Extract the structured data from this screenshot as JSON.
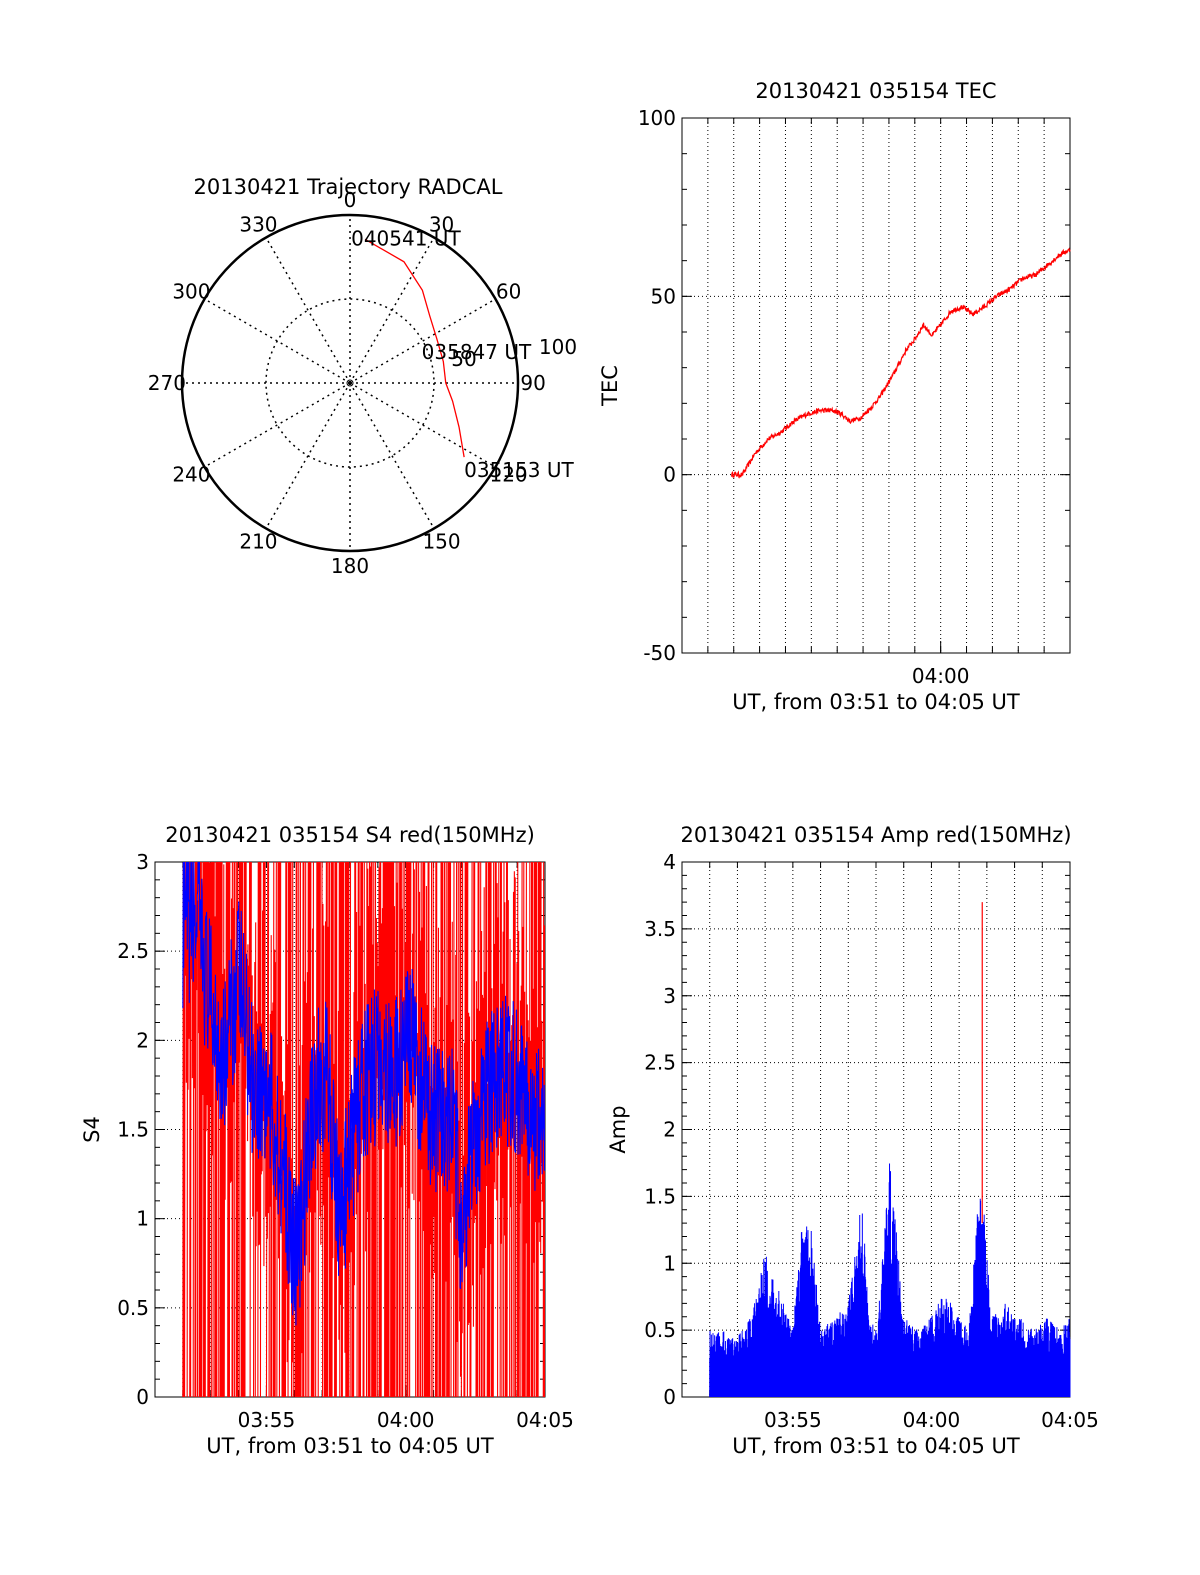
{
  "colors": {
    "background": "#ffffff",
    "axis": "#000000",
    "trajectory": "#ff0000",
    "tec": "#ff0000",
    "s4_primary": "#0000ff",
    "s4_secondary": "#ff0000",
    "amp_primary": "#0000ff",
    "amp_spike": "#ff0000"
  },
  "chart_data": [
    {
      "id": "trajectory",
      "type": "polar",
      "title": "20130421 Trajectory RADCAL",
      "azimuth_labels": [
        "0",
        "30",
        "60",
        "90",
        "120",
        "150",
        "180",
        "210",
        "240",
        "270",
        "300",
        "330"
      ],
      "radius_labels": [
        "50",
        "100"
      ],
      "radius_max": 100,
      "rings": [
        50,
        100
      ],
      "grid": "dotted",
      "series": [
        {
          "points": [
            {
              "az": 123,
              "r": 81
            },
            {
              "az": 112,
              "r": 70
            },
            {
              "az": 100,
              "r": 62
            },
            {
              "az": 90,
              "r": 57
            },
            {
              "az": 77,
              "r": 57
            },
            {
              "az": 63,
              "r": 58
            },
            {
              "az": 50,
              "r": 62
            },
            {
              "az": 38,
              "r": 70
            },
            {
              "az": 24,
              "r": 79
            },
            {
              "az": 6,
              "r": 86
            }
          ]
        }
      ],
      "annotations": [
        {
          "text": "040541 UT",
          "az": 6,
          "r": 86
        },
        {
          "text": "035847 UT",
          "az": 78,
          "r": 57
        },
        {
          "text": "035153 UT",
          "az": 123,
          "r": 81
        }
      ]
    },
    {
      "id": "tec",
      "type": "line",
      "title": "20130421 035154 TEC",
      "xlabel": "UT, from 03:51 to 04:05 UT",
      "ylabel": "TEC",
      "xlim": [
        "03:50",
        "04:05"
      ],
      "ylim": [
        -50,
        100
      ],
      "yticks": [
        -50,
        0,
        50,
        100
      ],
      "xticks": [
        "04:00"
      ],
      "grid": true,
      "series": [
        {
          "x": [
            "03:51:55",
            "03:52:20",
            "03:52:50",
            "03:53:20",
            "03:53:50",
            "03:54:20",
            "03:54:50",
            "03:55:20",
            "03:55:50",
            "03:56:10",
            "03:56:30",
            "03:56:55",
            "03:57:20",
            "03:57:40",
            "03:58:10",
            "03:58:40",
            "03:59:00",
            "03:59:20",
            "03:59:40",
            "04:00:00",
            "04:00:25",
            "04:00:50",
            "04:01:15",
            "04:01:40",
            "04:02:10",
            "04:02:40",
            "04:03:10",
            "04:03:40",
            "04:04:10",
            "04:04:40",
            "04:05:00"
          ],
          "y": [
            0,
            0,
            6,
            10,
            12,
            15,
            17,
            18,
            18,
            17,
            15,
            16,
            19,
            22,
            28,
            35,
            38,
            42,
            39,
            42,
            46,
            47,
            45,
            47,
            50,
            52,
            55,
            56,
            59,
            62,
            63
          ]
        }
      ]
    },
    {
      "id": "s4",
      "type": "line",
      "title": "20130421 035154 S4 red(150MHz)",
      "xlabel": "UT, from 03:51 to 04:05 UT",
      "ylabel": "S4",
      "xlim": [
        "03:51",
        "04:05"
      ],
      "ylim": [
        0,
        3
      ],
      "yticks": [
        0,
        0.5,
        1,
        1.5,
        2,
        2.5,
        3
      ],
      "xticks": [
        "03:55",
        "04:00",
        "04:05"
      ],
      "grid": true,
      "series": [
        {
          "x": [
            "03:52:00",
            "03:52:30",
            "03:53:00",
            "03:53:30",
            "03:54:00",
            "03:54:30",
            "03:55:00",
            "03:55:30",
            "03:55:50",
            "03:56:10",
            "03:56:40",
            "03:57:10",
            "03:57:40",
            "03:58:10",
            "03:58:40",
            "03:59:10",
            "03:59:40",
            "04:00:10",
            "04:00:40",
            "04:01:10",
            "04:01:40",
            "04:02:00",
            "04:02:20",
            "04:02:50",
            "04:03:20",
            "04:03:50",
            "04:04:20",
            "04:04:50"
          ],
          "y": [
            2.6,
            2.7,
            2.2,
            1.9,
            2.4,
            1.8,
            1.7,
            1.4,
            0.95,
            0.8,
            1.7,
            1.8,
            1.0,
            1.5,
            1.8,
            1.9,
            1.8,
            2.0,
            1.7,
            1.5,
            1.6,
            0.95,
            1.3,
            1.7,
            1.8,
            1.8,
            1.7,
            1.5
          ]
        }
      ]
    },
    {
      "id": "amp",
      "type": "bar",
      "title": "20130421 035154 Amp red(150MHz)",
      "xlabel": "UT, from 03:51 to 04:05 UT",
      "ylabel": "Amp",
      "xlim": [
        "03:51",
        "04:05"
      ],
      "ylim": [
        0,
        4
      ],
      "yticks": [
        0,
        0.5,
        1,
        1.5,
        2,
        2.5,
        3,
        3.5,
        4
      ],
      "xticks": [
        "03:55",
        "04:00",
        "04:05"
      ],
      "grid": true,
      "series": [
        {
          "x": [
            "03:52:00",
            "03:52:30",
            "03:53:00",
            "03:53:30",
            "03:54:00",
            "03:54:30",
            "03:55:00",
            "03:55:20",
            "03:55:40",
            "03:56:00",
            "03:56:30",
            "03:57:00",
            "03:57:30",
            "03:57:45",
            "03:58:00",
            "03:58:30",
            "03:59:00",
            "03:59:30",
            "04:00:00",
            "04:00:30",
            "04:01:00",
            "04:01:20",
            "04:01:40",
            "04:01:50",
            "04:02:10",
            "04:02:40",
            "04:03:10",
            "04:03:40",
            "04:04:10",
            "04:04:40",
            "04:05:00"
          ],
          "y": [
            0.5,
            0.5,
            0.45,
            0.6,
            1.1,
            0.8,
            0.5,
            1.35,
            1.3,
            0.5,
            0.6,
            0.7,
            1.5,
            0.6,
            0.5,
            1.8,
            0.6,
            0.5,
            0.6,
            0.8,
            0.6,
            0.5,
            1.4,
            1.6,
            0.6,
            0.7,
            0.6,
            0.5,
            0.6,
            0.5,
            0.6
          ]
        },
        {
          "x": [
            "04:01:50"
          ],
          "y": [
            3.7
          ]
        }
      ]
    }
  ]
}
